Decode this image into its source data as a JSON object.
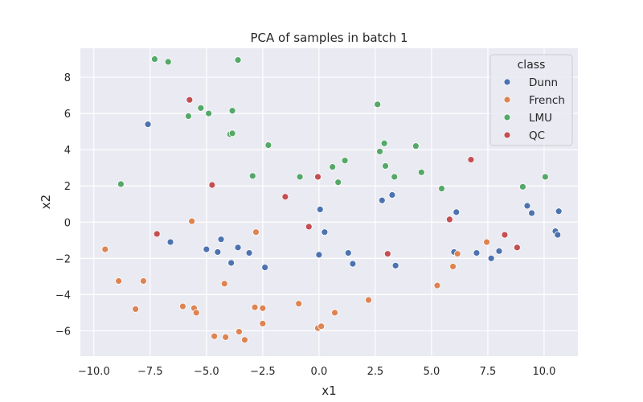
{
  "chart_data": {
    "type": "scatter",
    "title": "PCA of samples in batch 1",
    "xlabel": "x1",
    "ylabel": "x2",
    "xlim": [
      -10.6,
      11.5
    ],
    "ylim": [
      -7.4,
      9.6
    ],
    "x_ticks": [
      -10.0,
      -7.5,
      -5.0,
      -2.5,
      0.0,
      2.5,
      5.0,
      7.5,
      10.0
    ],
    "x_tick_labels": [
      "−10.0",
      "−7.5",
      "−5.0",
      "−2.5",
      "0.0",
      "2.5",
      "5.0",
      "7.5",
      "10.0"
    ],
    "y_ticks": [
      -6,
      -4,
      -2,
      0,
      2,
      4,
      6,
      8
    ],
    "y_tick_labels": [
      "−6",
      "−4",
      "−2",
      "0",
      "2",
      "4",
      "6",
      "8"
    ],
    "grid": true,
    "background": "#eaeaf2",
    "legend": {
      "title": "class",
      "placement": "top-right"
    },
    "series": [
      {
        "name": "Dunn",
        "color": "#4c72b0",
        "points": [
          [
            -7.6,
            5.4
          ],
          [
            -6.6,
            -1.1
          ],
          [
            -5.0,
            -1.5
          ],
          [
            -4.5,
            -1.65
          ],
          [
            -4.35,
            -0.95
          ],
          [
            -3.9,
            -2.25
          ],
          [
            -3.6,
            -1.4
          ],
          [
            -3.1,
            -1.7
          ],
          [
            -2.4,
            -2.5
          ],
          [
            0.0,
            -1.8
          ],
          [
            0.05,
            0.7
          ],
          [
            0.25,
            -0.55
          ],
          [
            1.3,
            -1.7
          ],
          [
            1.5,
            -2.3
          ],
          [
            2.8,
            1.2
          ],
          [
            3.25,
            1.5
          ],
          [
            3.4,
            -2.4
          ],
          [
            6.0,
            -1.65
          ],
          [
            6.1,
            0.55
          ],
          [
            7.0,
            -1.7
          ],
          [
            7.65,
            -2.0
          ],
          [
            8.0,
            -1.6
          ],
          [
            9.25,
            0.9
          ],
          [
            9.45,
            0.5
          ],
          [
            10.5,
            -0.5
          ],
          [
            10.6,
            -0.7
          ],
          [
            10.65,
            0.6
          ]
        ]
      },
      {
        "name": "French",
        "color": "#dd8452",
        "points": [
          [
            -9.5,
            -1.5
          ],
          [
            -8.9,
            -3.25
          ],
          [
            -8.15,
            -4.8
          ],
          [
            -7.8,
            -3.25
          ],
          [
            -6.05,
            -4.65
          ],
          [
            -5.65,
            0.05
          ],
          [
            -5.55,
            -4.75
          ],
          [
            -5.45,
            -5.0
          ],
          [
            -4.65,
            -6.3
          ],
          [
            -4.2,
            -3.4
          ],
          [
            -4.15,
            -6.35
          ],
          [
            -3.55,
            -6.05
          ],
          [
            -3.3,
            -6.5
          ],
          [
            -2.85,
            -4.7
          ],
          [
            -2.8,
            -0.55
          ],
          [
            -2.5,
            -4.75
          ],
          [
            -2.5,
            -5.6
          ],
          [
            -0.9,
            -4.5
          ],
          [
            -0.05,
            -5.85
          ],
          [
            0.1,
            -5.75
          ],
          [
            0.7,
            -5.0
          ],
          [
            2.2,
            -4.3
          ],
          [
            5.25,
            -3.5
          ],
          [
            5.95,
            -2.45
          ],
          [
            6.15,
            -1.75
          ],
          [
            7.45,
            -1.1
          ]
        ]
      },
      {
        "name": "LMU",
        "color": "#55a868",
        "points": [
          [
            -8.8,
            2.1
          ],
          [
            -7.3,
            9.0
          ],
          [
            -6.7,
            8.85
          ],
          [
            -5.8,
            5.85
          ],
          [
            -5.25,
            6.3
          ],
          [
            -4.9,
            6.0
          ],
          [
            -3.95,
            4.85
          ],
          [
            -3.85,
            4.9
          ],
          [
            -3.85,
            6.15
          ],
          [
            -3.6,
            8.95
          ],
          [
            -2.95,
            2.55
          ],
          [
            -2.25,
            4.25
          ],
          [
            -0.85,
            2.5
          ],
          [
            0.6,
            3.05
          ],
          [
            0.85,
            2.2
          ],
          [
            1.15,
            3.4
          ],
          [
            2.6,
            6.5
          ],
          [
            2.7,
            3.9
          ],
          [
            2.9,
            4.35
          ],
          [
            2.95,
            3.1
          ],
          [
            3.35,
            2.5
          ],
          [
            4.3,
            4.2
          ],
          [
            4.55,
            2.75
          ],
          [
            5.45,
            1.85
          ],
          [
            9.05,
            1.95
          ],
          [
            10.05,
            2.5
          ]
        ]
      },
      {
        "name": "QC",
        "color": "#c44e52",
        "points": [
          [
            -7.2,
            -0.65
          ],
          [
            -5.75,
            6.75
          ],
          [
            -4.75,
            2.05
          ],
          [
            -1.5,
            1.4
          ],
          [
            -0.45,
            -0.25
          ],
          [
            -0.05,
            2.5
          ],
          [
            3.05,
            -1.75
          ],
          [
            5.8,
            0.15
          ],
          [
            6.75,
            3.45
          ],
          [
            8.25,
            -0.7
          ],
          [
            8.8,
            -1.4
          ]
        ]
      }
    ]
  }
}
